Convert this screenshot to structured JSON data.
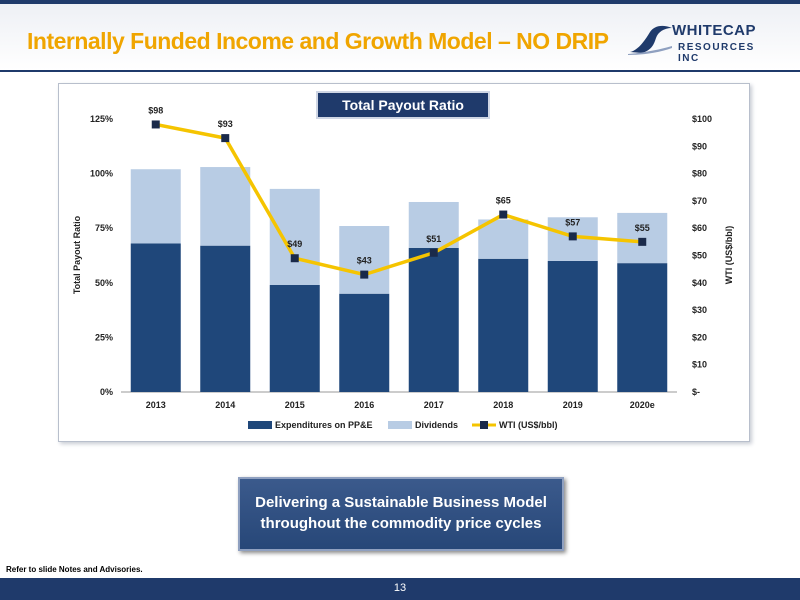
{
  "header": {
    "title": "Internally Funded Income and Growth Model – NO DRIP",
    "logo_line1": "WHITECAP",
    "logo_line2": "RESOURCES INC"
  },
  "callout": {
    "line1": "Delivering a Sustainable Business Model",
    "line2": "throughout the commodity price cycles"
  },
  "footnote": "Refer to slide Notes and Advisories.",
  "page_number": "13",
  "colors": {
    "navy": "#1f3a6b",
    "expenditures": "#1f477a",
    "dividends": "#b8cce4",
    "wti_line": "#f5c400",
    "title_accent": "#f0a500"
  },
  "chart_data": {
    "type": "bar",
    "title": "Total Payout Ratio",
    "categories": [
      "2013",
      "2014",
      "2015",
      "2016",
      "2017",
      "2018",
      "2019",
      "2020e"
    ],
    "ylabel": "Total Payout Ratio",
    "y2label": "WTI (US$/bbl)",
    "ylim": [
      0,
      125
    ],
    "y2lim": [
      0,
      100
    ],
    "y_ticks": [
      "0%",
      "25%",
      "50%",
      "75%",
      "100%",
      "125%"
    ],
    "y2_ticks": [
      "$-",
      "$10",
      "$20",
      "$30",
      "$40",
      "$50",
      "$60",
      "$70",
      "$80",
      "$90",
      "$100"
    ],
    "stacked": true,
    "series": [
      {
        "name": "Expenditures on PP&E",
        "type": "bar",
        "values": [
          68,
          67,
          49,
          45,
          66,
          61,
          60,
          59
        ]
      },
      {
        "name": "Dividends",
        "type": "bar",
        "values": [
          34,
          36,
          44,
          31,
          21,
          18,
          20,
          23
        ]
      },
      {
        "name": "WTI (US$/bbl)",
        "type": "line",
        "axis": "right",
        "values": [
          98,
          93,
          49,
          43,
          51,
          65,
          57,
          55
        ],
        "labels": [
          "$98",
          "$93",
          "$49",
          "$43",
          "$51",
          "$65",
          "$57",
          "$55"
        ]
      }
    ],
    "legend": "bottom",
    "grid": false
  }
}
